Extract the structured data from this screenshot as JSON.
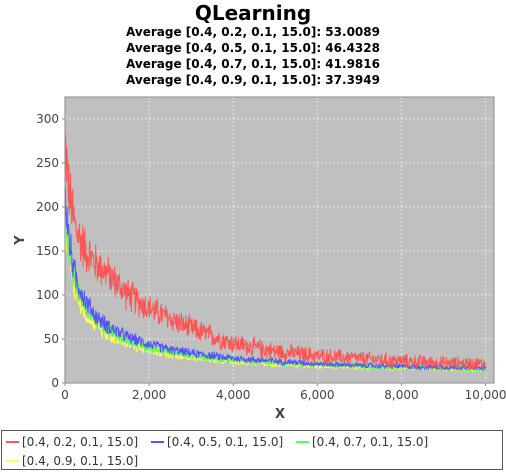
{
  "chart_data": {
    "type": "line",
    "title": "QLearning",
    "subtitles": [
      "Average [0.4, 0.2, 0.1, 15.0]: 53.0089",
      "Average [0.4, 0.5, 0.1, 15.0]: 46.4328",
      "Average [0.4, 0.7, 0.1, 15.0]: 41.9816",
      "Average [0.4, 0.9, 0.1, 15.0]: 37.3949"
    ],
    "xlabel": "X",
    "ylabel": "Y",
    "xlim": [
      0,
      10200
    ],
    "ylim": [
      0,
      325
    ],
    "x_ticks": [
      0,
      2000,
      4000,
      6000,
      8000,
      10000
    ],
    "x_tick_labels": [
      "0",
      "2,000",
      "4,000",
      "6,000",
      "8,000",
      "10,000"
    ],
    "y_ticks": [
      0,
      50,
      100,
      150,
      200,
      250,
      300
    ],
    "y_tick_labels": [
      "0",
      "50",
      "100",
      "150",
      "200",
      "250",
      "300"
    ],
    "grid": true,
    "legend_position": "bottom",
    "series": [
      {
        "name": "[0.4, 0.2, 0.1, 15.0]",
        "color": "#ff5555",
        "x": [
          0,
          100,
          250,
          500,
          750,
          1000,
          1500,
          2000,
          2500,
          3000,
          4000,
          5000,
          6000,
          7000,
          8000,
          9000,
          10000
        ],
        "y": [
          275,
          215,
          175,
          150,
          135,
          125,
          100,
          85,
          73,
          62,
          45,
          36,
          31,
          28,
          25,
          23,
          22
        ],
        "spread": [
          40,
          35,
          30,
          25,
          22,
          20,
          18,
          16,
          14,
          13,
          11,
          10,
          9,
          8,
          8,
          7,
          7
        ]
      },
      {
        "name": "[0.4, 0.5, 0.1, 15.0]",
        "color": "#5555ff",
        "x": [
          0,
          100,
          250,
          500,
          750,
          1000,
          1500,
          2000,
          2500,
          3000,
          4000,
          5000,
          6000,
          7000,
          8000,
          9000,
          10000
        ],
        "y": [
          215,
          160,
          120,
          92,
          75,
          65,
          52,
          44,
          38,
          34,
          28,
          25,
          22,
          20,
          19,
          18,
          17
        ],
        "spread": [
          25,
          20,
          16,
          12,
          10,
          9,
          7,
          6,
          5,
          5,
          4,
          4,
          3,
          3,
          3,
          3,
          3
        ]
      },
      {
        "name": "[0.4, 0.7, 0.1, 15.0]",
        "color": "#55ff55",
        "x": [
          0,
          100,
          250,
          500,
          750,
          1000,
          1500,
          2000,
          2500,
          3000,
          4000,
          5000,
          6000,
          7000,
          8000,
          9000,
          10000
        ],
        "y": [
          200,
          150,
          110,
          85,
          70,
          60,
          48,
          40,
          35,
          31,
          26,
          23,
          21,
          19,
          18,
          17,
          16
        ],
        "spread": [
          22,
          18,
          14,
          11,
          9,
          8,
          6,
          5,
          5,
          4,
          4,
          3,
          3,
          3,
          3,
          3,
          3
        ]
      },
      {
        "name": "[0.4, 0.9, 0.1, 15.0]",
        "color": "#ffff55",
        "x": [
          0,
          100,
          250,
          500,
          750,
          1000,
          1500,
          2000,
          2500,
          3000,
          4000,
          5000,
          6000,
          7000,
          8000,
          9000,
          10000
        ],
        "y": [
          185,
          140,
          102,
          78,
          64,
          55,
          44,
          37,
          32,
          29,
          24,
          21,
          19,
          18,
          17,
          16,
          15
        ],
        "spread": [
          20,
          16,
          12,
          10,
          8,
          7,
          6,
          5,
          4,
          4,
          3,
          3,
          3,
          3,
          2,
          2,
          2
        ]
      }
    ]
  },
  "colors": {
    "plot_background": "#c0c0c0",
    "grid": "#e8e8e8"
  }
}
